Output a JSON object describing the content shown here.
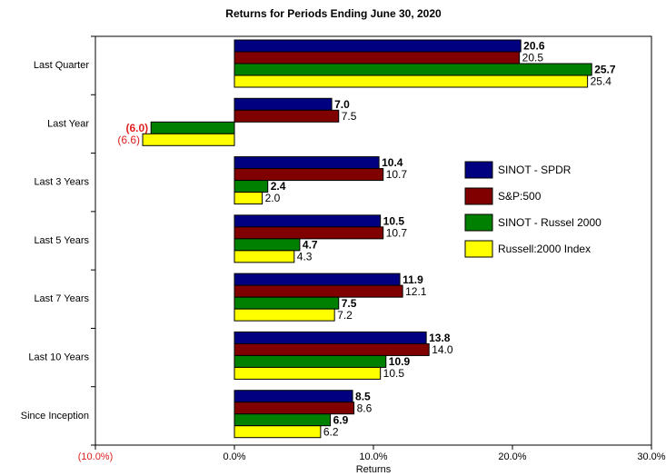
{
  "chart_data": {
    "type": "bar",
    "orientation": "horizontal",
    "title": "Returns for Periods Ending June 30, 2020",
    "xlabel": "Returns",
    "categories": [
      "Last Quarter",
      "Last Year",
      "Last 3 Years",
      "Last 5 Years",
      "Last 7 Years",
      "Last 10 Years",
      "Since Inception"
    ],
    "series": [
      {
        "name": "SINOT - SPDR",
        "color": "#000080",
        "values": [
          20.6,
          7.0,
          10.4,
          10.5,
          11.9,
          13.8,
          8.5
        ],
        "value_labels": [
          "20.6",
          "7.0",
          "10.4",
          "10.5",
          "11.9",
          "13.8",
          "8.5"
        ]
      },
      {
        "name": "S&P:500",
        "color": "#800000",
        "values": [
          20.5,
          7.5,
          10.7,
          10.7,
          12.1,
          14.0,
          8.6
        ],
        "value_labels": [
          "20.5",
          "7.5",
          "10.7",
          "10.7",
          "12.1",
          "14.0",
          "8.6"
        ]
      },
      {
        "name": "SINOT - Russel 2000",
        "color": "#008000",
        "values": [
          25.7,
          -6.0,
          2.4,
          4.7,
          7.5,
          10.9,
          6.9
        ],
        "value_labels": [
          "25.7",
          "(6.0)",
          "2.4",
          "4.7",
          "7.5",
          "10.9",
          "6.9"
        ]
      },
      {
        "name": "Russell:2000 Index",
        "color": "#ffff00",
        "values": [
          25.4,
          -6.6,
          2.0,
          4.3,
          7.2,
          10.5,
          6.2
        ],
        "value_labels": [
          "25.4",
          "(6.6)",
          "2.0",
          "4.3",
          "7.2",
          "10.5",
          "6.2"
        ]
      }
    ],
    "xlim": [
      -10,
      30
    ],
    "xticks": [
      {
        "value": -10,
        "label": "(10.0%)"
      },
      {
        "value": 0,
        "label": "0.0%"
      },
      {
        "value": 10,
        "label": "10.0%"
      },
      {
        "value": 20,
        "label": "20.0%"
      },
      {
        "value": 30,
        "label": "30.0%"
      }
    ],
    "grid": false,
    "legend": "right"
  }
}
